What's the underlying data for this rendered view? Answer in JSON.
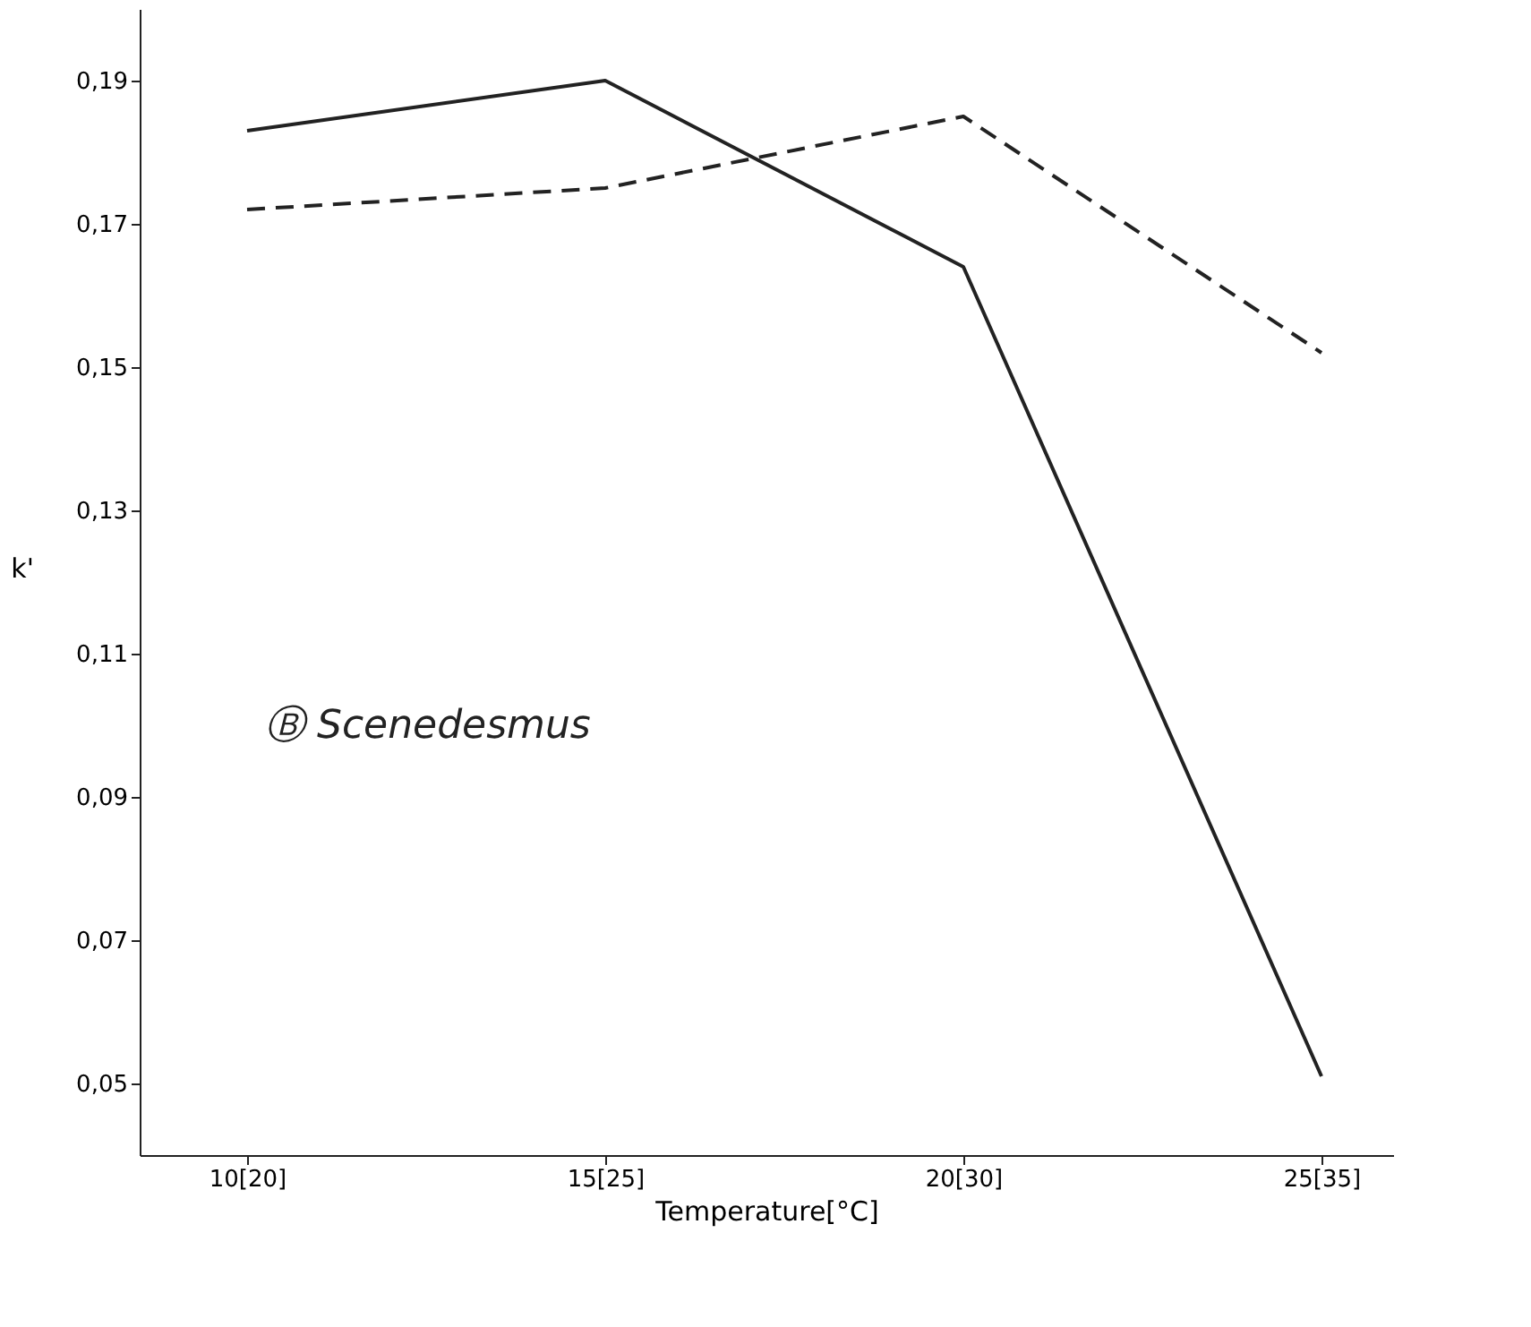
{
  "chart_data": {
    "type": "line",
    "xlabel": "Temperature[°C]",
    "ylabel": "k'",
    "categories": [
      "10[20]",
      "15[25]",
      "20[30]",
      "25[35]"
    ],
    "series": [
      {
        "color": "#222222",
        "line_style": "solid",
        "values": [
          0.183,
          0.19,
          0.164,
          0.051
        ]
      },
      {
        "color": "#222222",
        "line_style": "dashed",
        "values": [
          0.172,
          0.175,
          0.185,
          0.152
        ]
      }
    ],
    "ylim": [
      0.04,
      0.2
    ],
    "yticks": [
      {
        "value": 0.05,
        "label": "0,05"
      },
      {
        "value": 0.07,
        "label": "0,07"
      },
      {
        "value": 0.09,
        "label": "0,09"
      },
      {
        "value": 0.11,
        "label": "0,11"
      },
      {
        "value": 0.13,
        "label": "0,13"
      },
      {
        "value": 0.15,
        "label": "0,15"
      },
      {
        "value": 0.17,
        "label": "0,17"
      },
      {
        "value": 0.19,
        "label": "0,19"
      }
    ],
    "annotations": [
      "Ⓑ Scenedesmus"
    ],
    "grid": false,
    "marker": "none"
  }
}
